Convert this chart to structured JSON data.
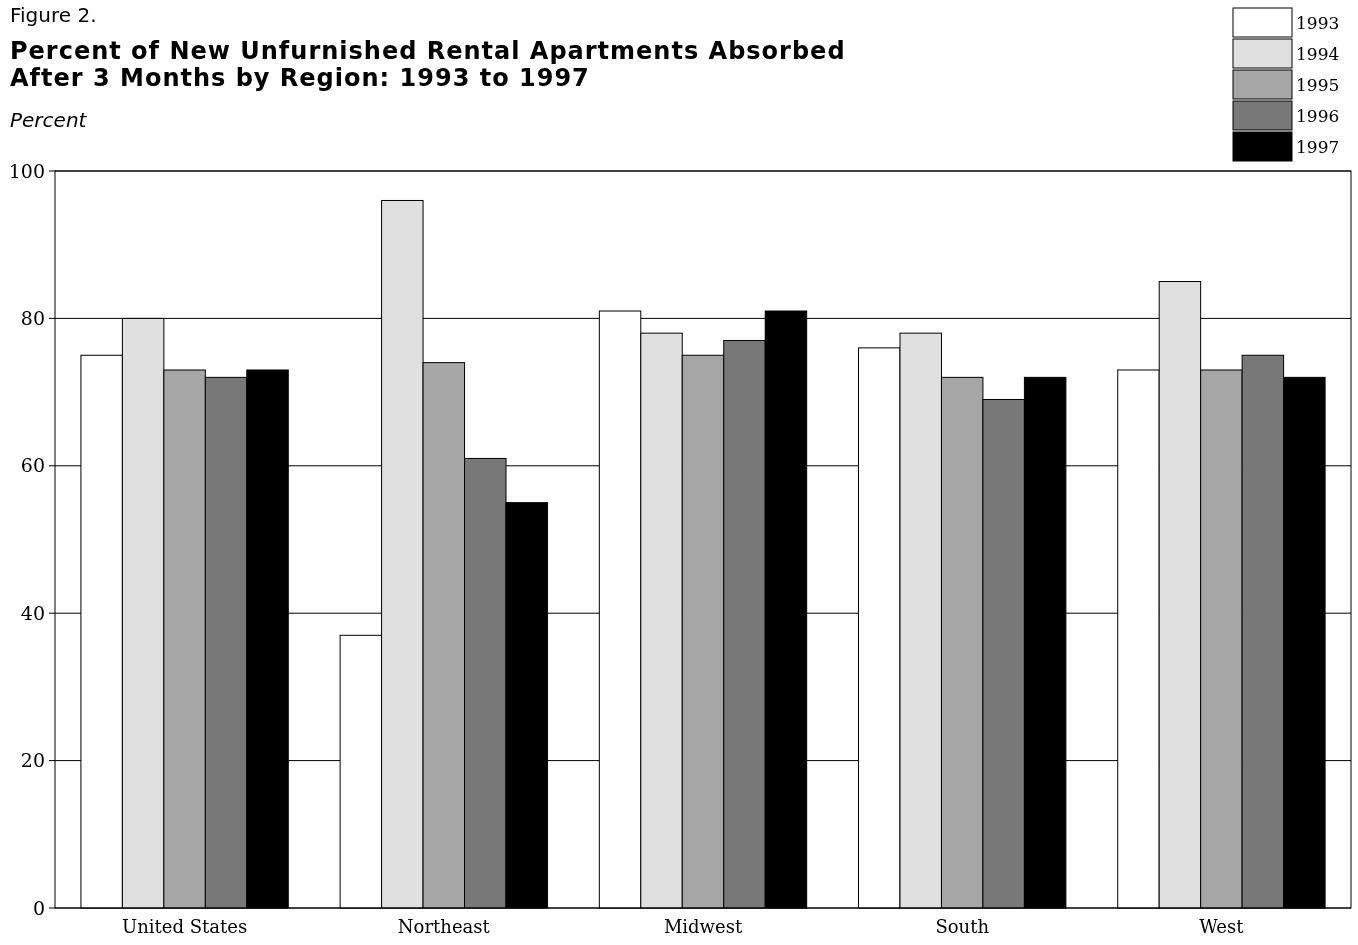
{
  "chart_data": {
    "type": "bar",
    "title": "Percent of New Unfurnished Rental Apartments Absorbed After 3 Months by Region:  1993 to 1997",
    "ylabel": "Percent",
    "annotations": [
      "Figure 2."
    ],
    "categories": [
      "United States",
      "Northeast",
      "Midwest",
      "South",
      "West"
    ],
    "series": [
      {
        "name": "1993",
        "color": "#ffffff",
        "values": [
          75,
          37,
          81,
          76,
          73
        ]
      },
      {
        "name": "1994",
        "color": "#e0e0e0",
        "values": [
          80,
          96,
          78,
          78,
          85
        ]
      },
      {
        "name": "1995",
        "color": "#a6a6a6",
        "values": [
          73,
          74,
          75,
          72,
          73
        ]
      },
      {
        "name": "1996",
        "color": "#787878",
        "values": [
          72,
          61,
          77,
          69,
          75
        ]
      },
      {
        "name": "1997",
        "color": "#000000",
        "values": [
          73,
          55,
          81,
          72,
          72
        ]
      }
    ],
    "ylim": [
      0,
      100
    ],
    "yticks": [
      0,
      20,
      40,
      60,
      80,
      100
    ],
    "grid": "y",
    "legend": "top right"
  }
}
